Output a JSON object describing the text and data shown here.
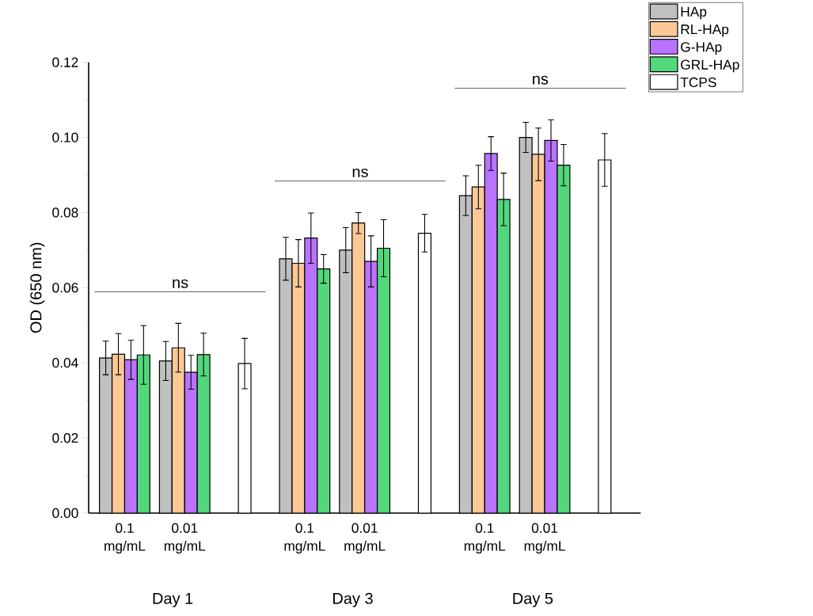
{
  "chart_data": {
    "type": "bar",
    "ylabel": "OD (650 nm)",
    "categories": [
      "0.1 mg/mL",
      "0.01 mg/mL",
      null,
      "0.1 mg/mL",
      "0.01 mg/mL",
      null,
      "0.1 mg/mL",
      "0.01 mg/mL",
      null
    ],
    "series": [
      {
        "name": "HAp",
        "color": "#c0c0c0",
        "values": [
          0.0413,
          0.0405,
          null,
          0.0677,
          0.07,
          null,
          0.0845,
          0.1,
          null
        ],
        "errors": [
          0.0045,
          0.0052,
          null,
          0.0057,
          0.006,
          null,
          0.0053,
          0.004,
          null
        ]
      },
      {
        "name": "RL-HAp",
        "color": "#fcc896",
        "values": [
          0.0423,
          0.044,
          null,
          0.0665,
          0.0772,
          null,
          0.0868,
          0.0955,
          null
        ],
        "errors": [
          0.0055,
          0.0065,
          null,
          0.0063,
          0.0028,
          null,
          0.0058,
          0.007,
          null
        ]
      },
      {
        "name": "G-HAp",
        "color": "#b973ff",
        "values": [
          0.0408,
          0.0375,
          null,
          0.0732,
          0.067,
          null,
          0.0957,
          0.0992,
          null
        ],
        "errors": [
          0.0052,
          0.0045,
          null,
          0.0067,
          0.0068,
          null,
          0.0045,
          0.0055,
          null
        ]
      },
      {
        "name": "GRL-HAp",
        "color": "#53d77c",
        "values": [
          0.0421,
          0.0422,
          null,
          0.065,
          0.0705,
          null,
          0.0835,
          0.0926,
          null
        ],
        "errors": [
          0.0078,
          0.0057,
          null,
          0.0038,
          0.0076,
          null,
          0.007,
          0.0055,
          null
        ]
      },
      {
        "name": "TCPS",
        "color": "#ffffff",
        "values": [
          null,
          null,
          0.0398,
          null,
          null,
          0.0745,
          null,
          null,
          0.094
        ],
        "errors": [
          null,
          null,
          0.0067,
          null,
          null,
          0.005,
          null,
          null,
          0.007
        ]
      }
    ],
    "ylim": [
      0,
      0.12
    ],
    "yticks": [
      {
        "value": 0,
        "label": "0.00"
      },
      {
        "value": 0.02,
        "label": "0.02"
      },
      {
        "value": 0.04,
        "label": "0.04"
      },
      {
        "value": 0.06,
        "label": "0.06"
      },
      {
        "value": 0.08,
        "label": "0.08"
      },
      {
        "value": 0.1,
        "label": "0.10"
      },
      {
        "value": 0.12,
        "label": "0.12"
      }
    ],
    "grid": false,
    "legend": "top right",
    "annotations": [
      "ns",
      "ns",
      "ns",
      "Day 1",
      "Day 3",
      "Day 5"
    ]
  }
}
